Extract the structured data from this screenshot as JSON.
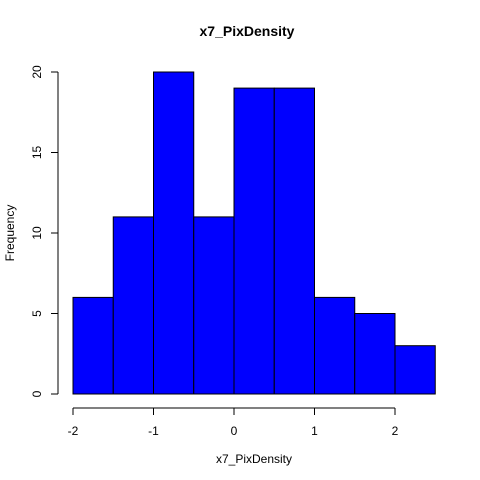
{
  "chart_data": {
    "type": "bar",
    "title": "x7_PixDensity",
    "xlabel": "x7_PixDensity",
    "ylabel": "Frequency",
    "bin_edges": [
      -2,
      -1.5,
      -1,
      -0.5,
      0,
      0.5,
      1,
      1.5,
      2,
      2.5
    ],
    "values": [
      6,
      11,
      20,
      11,
      19,
      19,
      6,
      5,
      3
    ],
    "xlim": [
      -2,
      2
    ],
    "ylim": [
      0,
      20
    ],
    "x_ticks": [
      "-2",
      "-1",
      "0",
      "1",
      "2"
    ],
    "y_ticks": [
      "0",
      "5",
      "10",
      "15",
      "20"
    ],
    "bar_color": "#0000FF",
    "grid": false
  }
}
